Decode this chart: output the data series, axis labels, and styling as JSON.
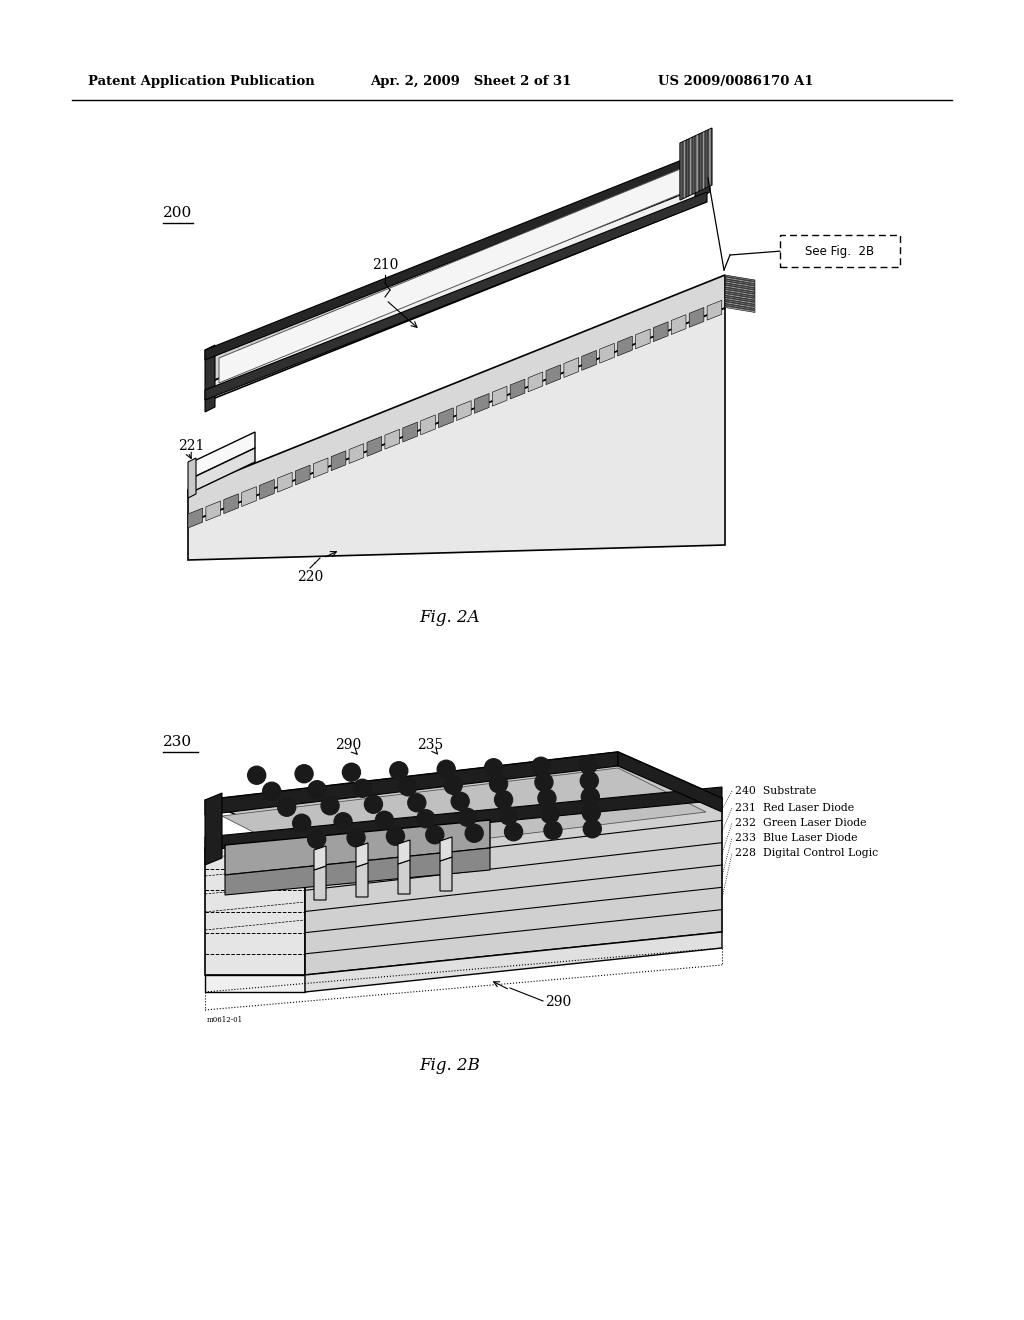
{
  "header_left": "Patent Application Publication",
  "header_mid": "Apr. 2, 2009   Sheet 2 of 31",
  "header_right": "US 2009/0086170 A1",
  "fig2a_label": "Fig. 2A",
  "fig2b_label": "Fig. 2B",
  "ref_200": "200",
  "ref_210": "210",
  "ref_220": "220",
  "ref_221": "221",
  "ref_230": "230",
  "ref_235": "235",
  "ref_290_top": "290",
  "ref_290_bot": "290",
  "see_fig2b": "See Fig.  2B",
  "layer_labels": [
    "240  Substrate",
    "231  Red Laser Diode",
    "232  Green Laser Diode",
    "233  Blue Laser Diode",
    "228  Digital Control Logic"
  ],
  "watermark": "m0612-01",
  "bg_color": "#ffffff",
  "line_color": "#000000"
}
